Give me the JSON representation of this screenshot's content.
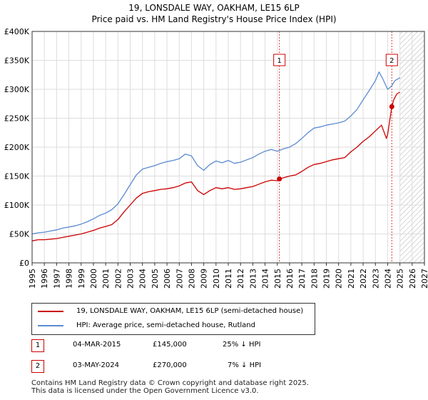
{
  "header": {
    "title": "19, LONSDALE WAY, OAKHAM, LE15 6LP",
    "subtitle": "Price paid vs. HM Land Registry's House Price Index (HPI)"
  },
  "legend": {
    "items": [
      {
        "label": "19, LONSDALE WAY, OAKHAM, LE15 6LP (semi-detached house)",
        "color": "#cc0000"
      },
      {
        "label": "HPI: Average price, semi-detached house, Rutland",
        "color": "#5b8bd0"
      }
    ]
  },
  "transactions": [
    {
      "num": "1",
      "date": "04-MAR-2015",
      "price": "£145,000",
      "delta": "25% ↓ HPI"
    },
    {
      "num": "2",
      "date": "03-MAY-2024",
      "price": "£270,000",
      "delta": "7% ↓ HPI"
    }
  ],
  "footer": {
    "line1": "Contains HM Land Registry data © Crown copyright and database right 2025.",
    "line2": "This data is licensed under the Open Government Licence v3.0."
  },
  "chart_data": {
    "type": "line",
    "xlim": [
      1995,
      2027
    ],
    "ylim": [
      0,
      400000
    ],
    "x_ticks": [
      "1995",
      "1996",
      "1997",
      "1998",
      "1999",
      "2000",
      "2001",
      "2002",
      "2003",
      "2004",
      "2005",
      "2006",
      "2007",
      "2008",
      "2009",
      "2010",
      "2011",
      "2012",
      "2013",
      "2014",
      "2015",
      "2016",
      "2017",
      "2018",
      "2019",
      "2020",
      "2021",
      "2022",
      "2023",
      "2024",
      "2025",
      "2026",
      "2027"
    ],
    "y_ticks": [
      {
        "value": 0,
        "label": "£0"
      },
      {
        "value": 50000,
        "label": "£50K"
      },
      {
        "value": 100000,
        "label": "£100K"
      },
      {
        "value": 150000,
        "label": "£150K"
      },
      {
        "value": 200000,
        "label": "£200K"
      },
      {
        "value": 250000,
        "label": "£250K"
      },
      {
        "value": 300000,
        "label": "£300K"
      },
      {
        "value": 350000,
        "label": "£350K"
      },
      {
        "value": 400000,
        "label": "£400K"
      }
    ],
    "grid": true,
    "hatched_from": 2025.0,
    "series": [
      {
        "name": "19, LONSDALE WAY, OAKHAM, LE15 6LP (semi-detached house)",
        "color": "#cc0000",
        "x": [
          1995.0,
          1995.5,
          1996.0,
          1996.5,
          1997.0,
          1997.5,
          1998.0,
          1998.5,
          1999.0,
          1999.5,
          2000.0,
          2000.5,
          2001.0,
          2001.5,
          2002.0,
          2002.5,
          2003.0,
          2003.5,
          2004.0,
          2004.5,
          2005.0,
          2005.5,
          2006.0,
          2006.5,
          2007.0,
          2007.5,
          2008.0,
          2008.5,
          2009.0,
          2009.5,
          2010.0,
          2010.5,
          2011.0,
          2011.5,
          2012.0,
          2012.5,
          2013.0,
          2013.5,
          2014.0,
          2014.5,
          2015.0,
          2015.17,
          2015.5,
          2016.0,
          2016.5,
          2017.0,
          2017.5,
          2018.0,
          2018.5,
          2019.0,
          2019.5,
          2020.0,
          2020.5,
          2021.0,
          2021.5,
          2022.0,
          2022.5,
          2023.0,
          2023.5,
          2023.9,
          2024.0,
          2024.34,
          2024.5,
          2024.75,
          2025.0
        ],
        "values": [
          38000,
          40000,
          40000,
          41000,
          42000,
          44000,
          46000,
          48000,
          50000,
          53000,
          56000,
          60000,
          63000,
          66000,
          75000,
          88000,
          100000,
          112000,
          120000,
          123000,
          125000,
          127000,
          128000,
          130000,
          133000,
          138000,
          140000,
          125000,
          118000,
          125000,
          130000,
          128000,
          130000,
          127000,
          128000,
          130000,
          132000,
          136000,
          140000,
          143000,
          142000,
          145000,
          147000,
          150000,
          152000,
          158000,
          165000,
          170000,
          172000,
          175000,
          178000,
          180000,
          182000,
          192000,
          200000,
          210000,
          218000,
          228000,
          238000,
          215000,
          222000,
          270000,
          282000,
          292000,
          295000
        ]
      },
      {
        "name": "HPI: Average price, semi-detached house, Rutland",
        "color": "#5b8bd0",
        "x": [
          1995.0,
          1995.5,
          1996.0,
          1996.5,
          1997.0,
          1997.5,
          1998.0,
          1998.5,
          1999.0,
          1999.5,
          2000.0,
          2000.5,
          2001.0,
          2001.5,
          2002.0,
          2002.5,
          2003.0,
          2003.5,
          2004.0,
          2004.5,
          2005.0,
          2005.5,
          2006.0,
          2006.5,
          2007.0,
          2007.5,
          2008.0,
          2008.5,
          2009.0,
          2009.5,
          2010.0,
          2010.5,
          2011.0,
          2011.5,
          2012.0,
          2012.5,
          2013.0,
          2013.5,
          2014.0,
          2014.5,
          2015.0,
          2015.5,
          2016.0,
          2016.5,
          2017.0,
          2017.5,
          2018.0,
          2018.5,
          2019.0,
          2019.5,
          2020.0,
          2020.5,
          2021.0,
          2021.5,
          2022.0,
          2022.5,
          2023.0,
          2023.3,
          2023.6,
          2024.0,
          2024.3,
          2024.6,
          2025.0
        ],
        "values": [
          50000,
          52000,
          53000,
          55000,
          57000,
          60000,
          62000,
          64000,
          67000,
          71000,
          76000,
          82000,
          86000,
          92000,
          102000,
          118000,
          135000,
          152000,
          162000,
          165000,
          168000,
          172000,
          175000,
          177000,
          180000,
          188000,
          185000,
          168000,
          160000,
          170000,
          176000,
          173000,
          177000,
          172000,
          174000,
          178000,
          182000,
          188000,
          193000,
          196000,
          193000,
          197000,
          200000,
          206000,
          215000,
          225000,
          233000,
          235000,
          238000,
          240000,
          242000,
          245000,
          254000,
          265000,
          282000,
          298000,
          315000,
          330000,
          318000,
          300000,
          305000,
          315000,
          320000
        ]
      }
    ],
    "markers": [
      {
        "label": "1",
        "x": 2015.17,
        "y": 145000
      },
      {
        "label": "2",
        "x": 2024.34,
        "y": 270000
      }
    ]
  }
}
